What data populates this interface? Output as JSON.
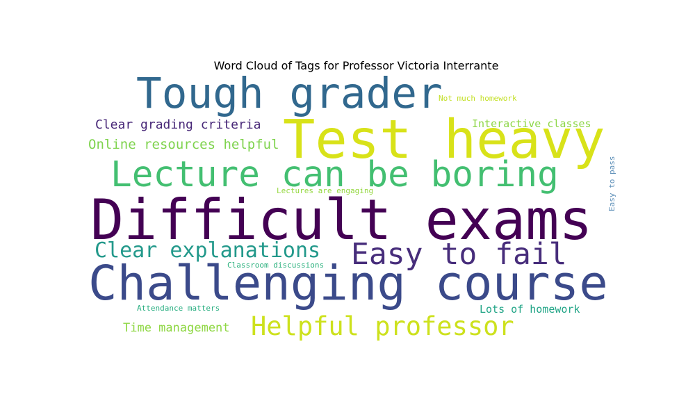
{
  "chart_data": {
    "type": "wordcloud",
    "title": "Word Cloud of Tags for Professor Victoria Interrante",
    "words": [
      {
        "text": "Difficult exams",
        "weight": 1.0,
        "color": "#440154"
      },
      {
        "text": "Challenging course",
        "weight": 0.87,
        "color": "#3b4a8a"
      },
      {
        "text": "Test heavy",
        "weight": 0.96,
        "color": "#d8e219"
      },
      {
        "text": "Tough grader",
        "weight": 0.76,
        "color": "#31688e"
      },
      {
        "text": "Lecture can be boring",
        "weight": 0.64,
        "color": "#43bf71"
      },
      {
        "text": "Easy to fail",
        "weight": 0.54,
        "color": "#472d7b"
      },
      {
        "text": "Helpful professor",
        "weight": 0.46,
        "color": "#cde11d"
      },
      {
        "text": "Clear explanations",
        "weight": 0.38,
        "color": "#23998b"
      },
      {
        "text": "Clear grading criteria",
        "weight": 0.23,
        "color": "#482878"
      },
      {
        "text": "Online resources helpful",
        "weight": 0.24,
        "color": "#7fd34e"
      },
      {
        "text": "Interactive classes",
        "weight": 0.19,
        "color": "#8cd645"
      },
      {
        "text": "Time management",
        "weight": 0.21,
        "color": "#8fd744"
      },
      {
        "text": "Lots of homework",
        "weight": 0.19,
        "color": "#20a486"
      },
      {
        "text": "Not much homework",
        "weight": 0.14,
        "color": "#c2df23"
      },
      {
        "text": "Lectures are engaging",
        "weight": 0.14,
        "color": "#95d840"
      },
      {
        "text": "Classroom discussions",
        "weight": 0.14,
        "color": "#2cb17e"
      },
      {
        "text": "Attendance matters",
        "weight": 0.14,
        "color": "#28ae80"
      },
      {
        "text": "Easy to pass",
        "weight": 0.14,
        "color": "#5d8fb8"
      }
    ]
  }
}
